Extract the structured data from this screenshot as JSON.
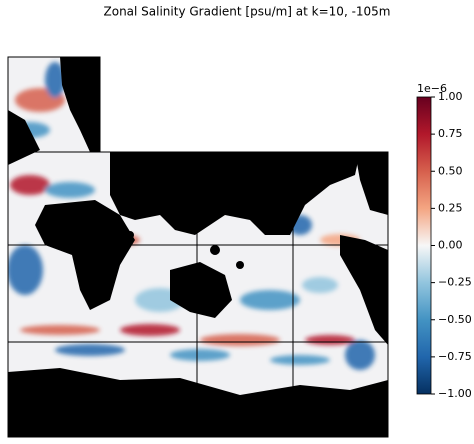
{
  "chart_data": {
    "type": "map",
    "title": "Zonal Salinity Gradient [psu/m] at k=10, -105m",
    "colorbar_label": "1e−6",
    "clim": [
      -1,
      1
    ],
    "cmap_colors": [
      "#053061",
      "#2166ac",
      "#4393c3",
      "#92c5de",
      "#f7f7f7",
      "#f4a582",
      "#d6604d",
      "#b2182b",
      "#67001f"
    ],
    "yticks": [
      {
        "value": -1,
        "label": "−1.00"
      },
      {
        "value": -0.75,
        "label": "−0.75"
      },
      {
        "value": -0.5,
        "label": "−0.50"
      },
      {
        "value": -0.25,
        "label": "−0.25"
      },
      {
        "value": 0,
        "label": "0.00"
      },
      0.25,
      {
        "value": 0.5,
        "label": "0.50"
      },
      0.75,
      {
        "value": 1,
        "label": "1.00"
      }
    ]
  }
}
